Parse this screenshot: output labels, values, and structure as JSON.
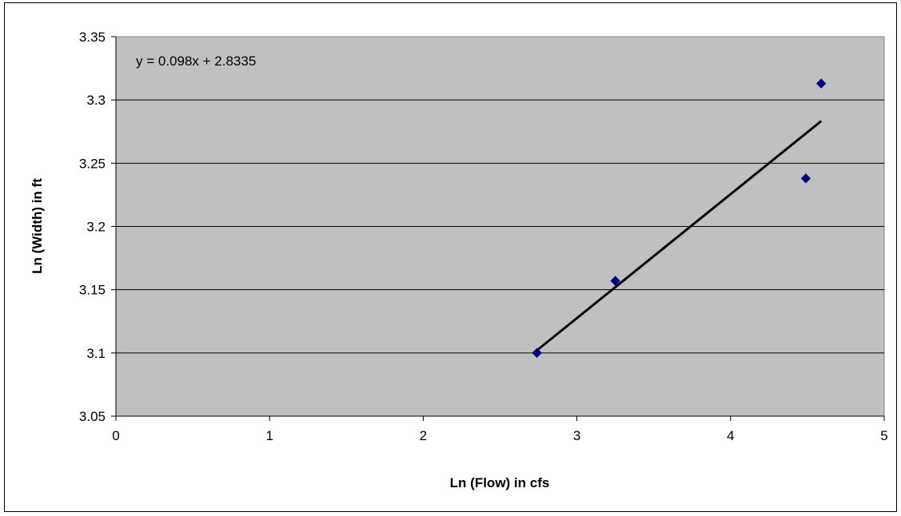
{
  "chart_data": {
    "type": "scatter",
    "xlabel": "Ln (Flow) in cfs",
    "ylabel": "Ln (Width) in ft",
    "xlim": [
      0,
      5
    ],
    "ylim": [
      3.05,
      3.35
    ],
    "x_ticks": [
      "0",
      "1",
      "2",
      "3",
      "4",
      "5"
    ],
    "y_ticks": [
      "3.05",
      "3.1",
      "3.15",
      "3.2",
      "3.25",
      "3.3",
      "3.35"
    ],
    "grid": "horizontal",
    "series": [
      {
        "marker": "diamond",
        "color": "#000080",
        "points": [
          {
            "x": 2.74,
            "y": 3.1
          },
          {
            "x": 3.25,
            "y": 3.157
          },
          {
            "x": 4.49,
            "y": 3.238
          },
          {
            "x": 4.59,
            "y": 3.313
          }
        ]
      }
    ],
    "trendline": {
      "slope": 0.098,
      "intercept": 2.8335,
      "x_range": [
        2.74,
        4.59
      ],
      "color": "#000000",
      "equation": "y = 0.098x + 2.8335"
    },
    "plot_background": "#c0c0c0"
  }
}
